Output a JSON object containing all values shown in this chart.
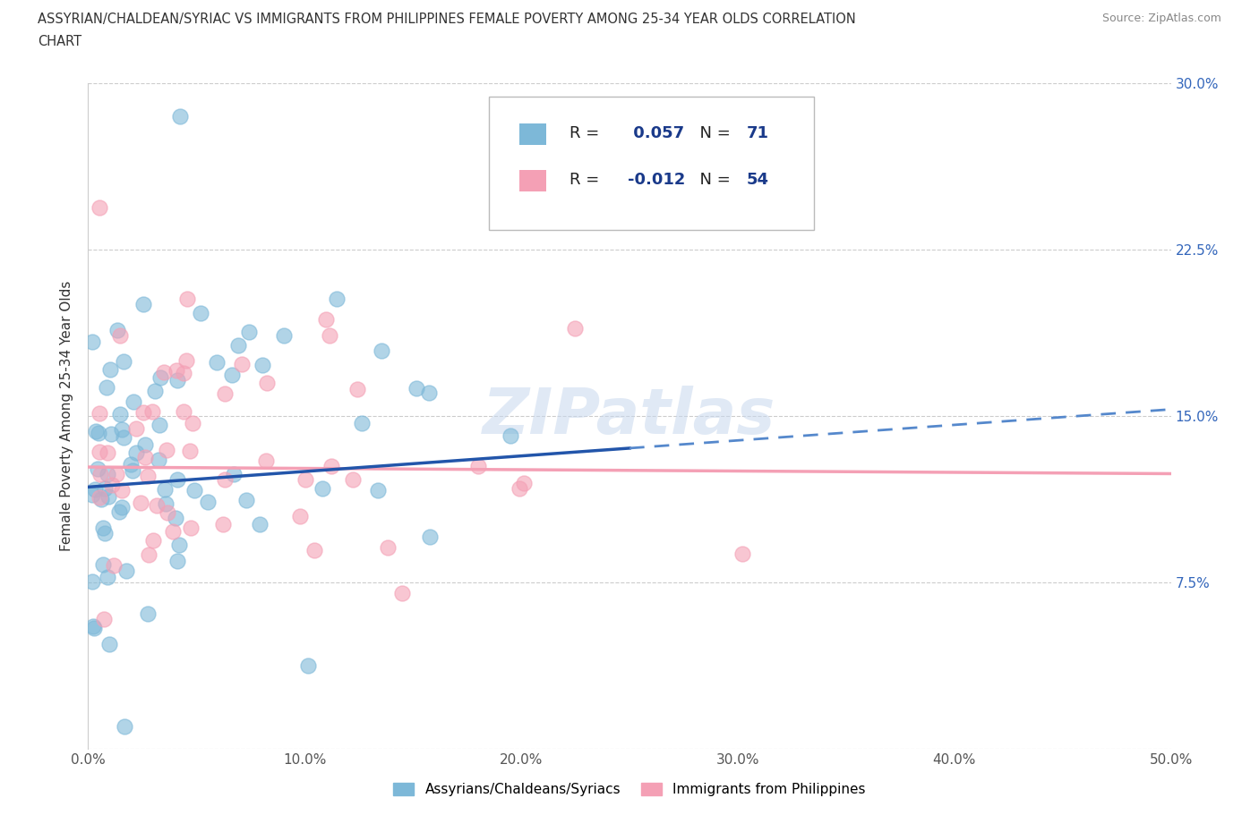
{
  "title_line1": "ASSYRIAN/CHALDEAN/SYRIAC VS IMMIGRANTS FROM PHILIPPINES FEMALE POVERTY AMONG 25-34 YEAR OLDS CORRELATION",
  "title_line2": "CHART",
  "source": "Source: ZipAtlas.com",
  "ylabel": "Female Poverty Among 25-34 Year Olds",
  "xlim": [
    0.0,
    0.5
  ],
  "ylim": [
    0.0,
    0.3
  ],
  "xtick_vals": [
    0.0,
    0.1,
    0.2,
    0.3,
    0.4,
    0.5
  ],
  "xtick_labels": [
    "0.0%",
    "10.0%",
    "20.0%",
    "30.0%",
    "40.0%",
    "50.0%"
  ],
  "ytick_vals": [
    0.0,
    0.075,
    0.15,
    0.225,
    0.3
  ],
  "ytick_labels": [
    "",
    "7.5%",
    "15.0%",
    "22.5%",
    "30.0%"
  ],
  "blue_color": "#7db8d8",
  "pink_color": "#f4a0b5",
  "blue_R": 0.057,
  "blue_N": 71,
  "pink_R": -0.012,
  "pink_N": 54,
  "legend_label_blue": "Assyrians/Chaldeans/Syriacs",
  "legend_label_pink": "Immigrants from Philippines",
  "watermark_text": "ZIPatlas",
  "blue_line_solid_end": 0.25,
  "blue_line_start_y": 0.118,
  "blue_line_end_y": 0.153,
  "pink_line_start_y": 0.127,
  "pink_line_end_y": 0.124,
  "grid_color": "#cccccc",
  "text_color_dark": "#333333",
  "text_color_blue": "#1a3a8a",
  "text_color_gray": "#888888"
}
